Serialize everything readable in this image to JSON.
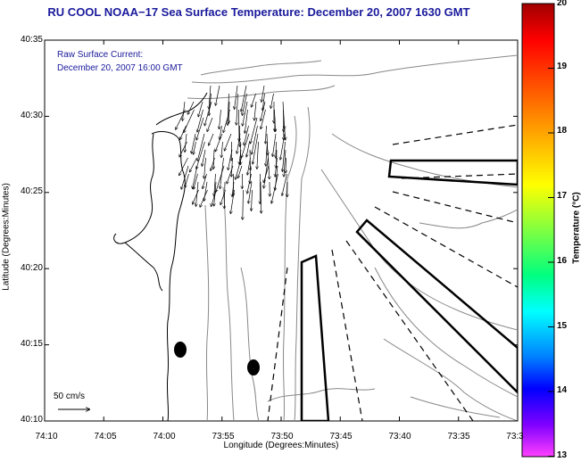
{
  "title": "RU COOL  NOAA−17  Sea Surface Temperature:  December 20, 2007 1630 GMT",
  "current_label": [
    "Raw Surface Current:",
    "December 20, 2007 16:00 GMT"
  ],
  "axes": {
    "xlabel": "Longitude (Degrees:Minutes)",
    "ylabel": "Latitude (Degrees:Minutes)",
    "lon_ticks": [
      "74:10",
      "74:05",
      "74:00",
      "73:55",
      "73:50",
      "73:45",
      "73:40",
      "73:35",
      "73:3"
    ],
    "lat_ticks": [
      "40:35",
      "40:30",
      "40:25",
      "40:20",
      "40:15",
      "40:10"
    ]
  },
  "scale_arrow": {
    "label": "50 cm/s"
  },
  "colorbar": {
    "label": "Temperature (°C)",
    "ticks": [
      "20",
      "19",
      "18",
      "17",
      "16",
      "15",
      "14",
      "13"
    ],
    "colors": [
      "#c00000",
      "#ff2020",
      "#ff8000",
      "#ffd000",
      "#c8ff00",
      "#40ff40",
      "#00ffc0",
      "#00c8ff",
      "#0060ff",
      "#2020ff",
      "#8000ff",
      "#ff40ff"
    ]
  },
  "map": {
    "outline_color": "#000000",
    "contour_color": "#888888",
    "land_color": "#ffffff",
    "ocean_color": "#ffffff"
  }
}
